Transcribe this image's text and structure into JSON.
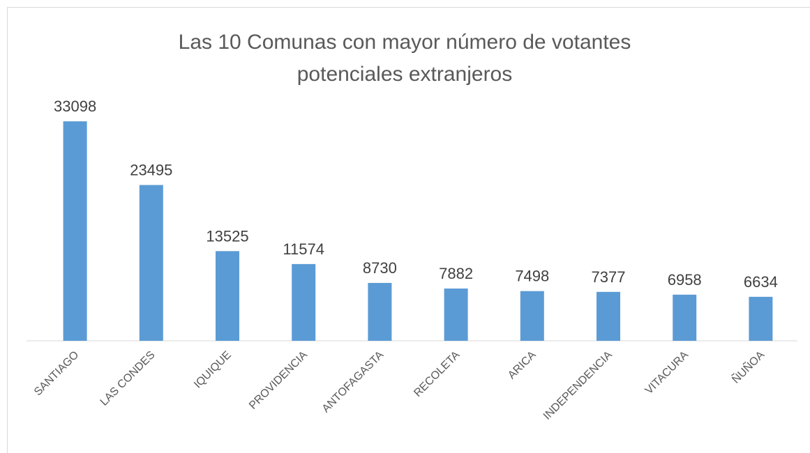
{
  "chart_data": {
    "type": "bar",
    "title": "Las 10 Comunas con mayor número de votantes potenciales extranjeros",
    "categories": [
      "SANTIAGO",
      "LAS CONDES",
      "IQUIQUE",
      "PROVIDENCIA",
      "ANTOFAGASTA",
      "RECOLETA",
      "ARICA",
      "INDEPENDENCIA",
      "VITACURA",
      "ÑUÑOA"
    ],
    "values": [
      33098,
      23495,
      13525,
      11574,
      8730,
      7882,
      7498,
      7377,
      6958,
      6634
    ],
    "color": "#5b9bd5",
    "ylim": [
      0,
      35000
    ]
  }
}
